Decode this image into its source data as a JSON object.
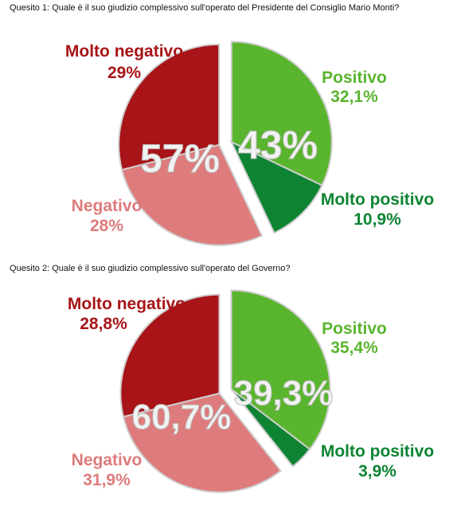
{
  "colors": {
    "molto_negativo": "#a81417",
    "negativo": "#de7b7c",
    "positivo": "#5ab52e",
    "molto_positivo": "#0e8433",
    "label_red": "#a81417",
    "label_pink": "#de7b7c",
    "label_green": "#5ab52e",
    "label_darkgreen": "#0e8433"
  },
  "chart_data": [
    {
      "type": "pie",
      "title": "Quesito 1: Quale è il suo giudizio complessivo sull'operato del Presidente del Consiglio Mario Monti?",
      "slices": [
        {
          "name": "Positivo",
          "value_text": "32,1%",
          "value": 32.1,
          "group": "positive"
        },
        {
          "name": "Molto positivo",
          "value_text": "10,9%",
          "value": 10.9,
          "group": "positive"
        },
        {
          "name": "Negativo",
          "value_text": "28%",
          "value": 28,
          "group": "negative"
        },
        {
          "name": "Molto negativo",
          "value_text": "29%",
          "value": 29,
          "group": "negative"
        }
      ],
      "totals": {
        "positive": "43%",
        "negative": "57%"
      }
    },
    {
      "type": "pie",
      "title": "Quesito 2: Quale è il suo giudizio complessivo sull'operato del Governo?",
      "slices": [
        {
          "name": "Positivo",
          "value_text": "35,4%",
          "value": 35.4,
          "group": "positive"
        },
        {
          "name": "Molto positivo",
          "value_text": "3,9%",
          "value": 3.9,
          "group": "positive"
        },
        {
          "name": "Negativo",
          "value_text": "31,9%",
          "value": 31.9,
          "group": "negative"
        },
        {
          "name": "Molto negativo",
          "value_text": "28,8%",
          "value": 28.8,
          "group": "negative"
        }
      ],
      "totals": {
        "positive": "39,3%",
        "negative": "60,7%"
      }
    }
  ]
}
